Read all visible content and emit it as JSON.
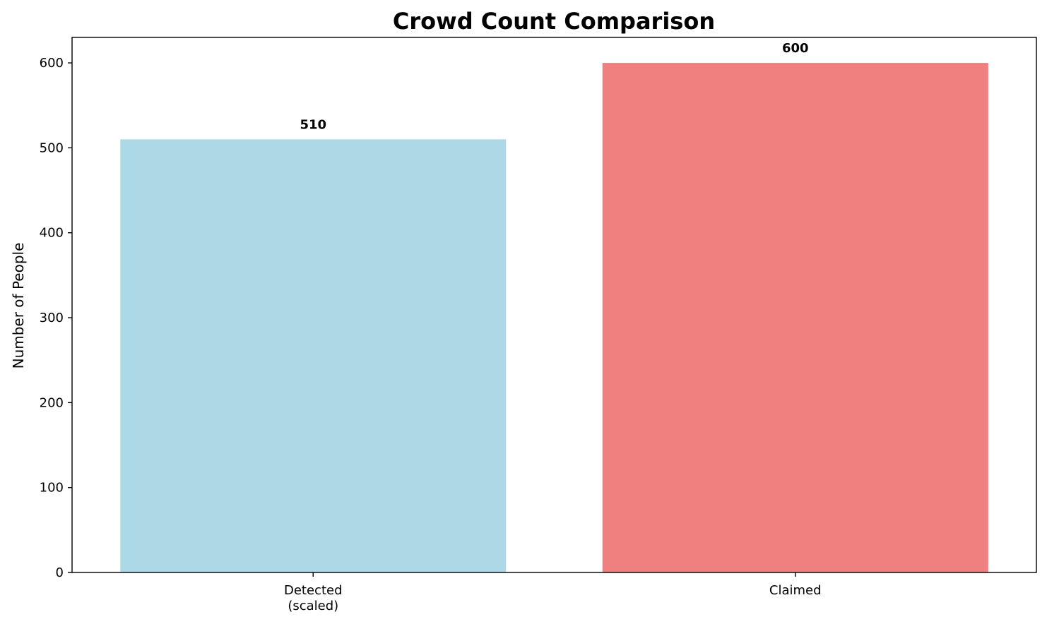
{
  "chart_data": {
    "type": "bar",
    "title": "Crowd Count Comparison",
    "xlabel": "",
    "ylabel": "Number of People",
    "categories": [
      "Detected\n(scaled)",
      "Claimed"
    ],
    "values": [
      510,
      600
    ],
    "data_labels": [
      "510",
      "600"
    ],
    "colors": [
      "#add8e6",
      "#f08080"
    ],
    "ylim": [
      0,
      630
    ],
    "yticks": [
      0,
      100,
      200,
      300,
      400,
      500,
      600
    ],
    "grid": false,
    "legend": "none"
  }
}
